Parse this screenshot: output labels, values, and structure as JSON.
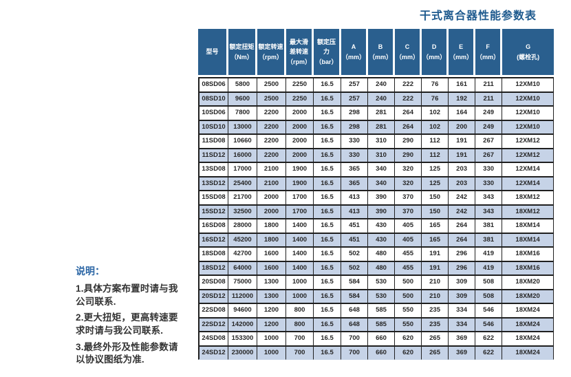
{
  "page": {
    "title": "干式离合器性能参数表"
  },
  "notes": {
    "heading": "说明：",
    "items": [
      "1.具体方案布置时请与我公司联系.",
      "2.更大扭矩，更高转速要求时请与我公司联系.",
      "3.最终外形及性能参数请以协议图纸为准."
    ]
  },
  "table": {
    "headers": [
      "型号",
      "额定扭矩\n（Nm）",
      "额定转速\n（rpm）",
      "最大滑\n差转速\n（rpm）",
      "额定压力\n（bar）",
      "A\n（mm）",
      "B\n（mm）",
      "C\n（mm）",
      "D\n（mm）",
      "E\n（mm）",
      "F\n（mm）",
      "G\n(螺栓孔)"
    ],
    "rows": [
      [
        "08SD06",
        "5800",
        "2500",
        "2250",
        "16.5",
        "257",
        "240",
        "222",
        "76",
        "161",
        "211",
        "12XM10"
      ],
      [
        "08SD10",
        "9600",
        "2500",
        "2250",
        "16.5",
        "257",
        "240",
        "222",
        "76",
        "192",
        "211",
        "12XM10"
      ],
      [
        "10SD06",
        "7800",
        "2200",
        "2000",
        "16.5",
        "298",
        "281",
        "264",
        "102",
        "164",
        "249",
        "12XM10"
      ],
      [
        "10SD10",
        "13000",
        "2200",
        "2000",
        "16.5",
        "298",
        "281",
        "264",
        "102",
        "200",
        "249",
        "12XM10"
      ],
      [
        "11SD08",
        "10660",
        "2200",
        "2000",
        "16.5",
        "330",
        "310",
        "290",
        "112",
        "191",
        "267",
        "12XM12"
      ],
      [
        "11SD12",
        "16000",
        "2200",
        "2000",
        "16.5",
        "330",
        "310",
        "290",
        "112",
        "191",
        "267",
        "12XM12"
      ],
      [
        "13SD08",
        "17000",
        "2100",
        "1900",
        "16.5",
        "365",
        "340",
        "320",
        "125",
        "203",
        "330",
        "12XM14"
      ],
      [
        "13SD12",
        "25400",
        "2100",
        "1900",
        "16.5",
        "365",
        "340",
        "320",
        "125",
        "203",
        "330",
        "12XM14"
      ],
      [
        "15SD08",
        "21700",
        "2000",
        "1700",
        "16.5",
        "413",
        "390",
        "370",
        "150",
        "242",
        "343",
        "18XM12"
      ],
      [
        "15SD12",
        "32500",
        "2000",
        "1700",
        "16.5",
        "413",
        "390",
        "370",
        "150",
        "242",
        "343",
        "18XM12"
      ],
      [
        "16SD08",
        "28000",
        "1800",
        "1400",
        "16.5",
        "451",
        "430",
        "405",
        "165",
        "264",
        "381",
        "18XM14"
      ],
      [
        "16SD12",
        "45200",
        "1800",
        "1400",
        "16.5",
        "451",
        "430",
        "405",
        "165",
        "264",
        "381",
        "18XM14"
      ],
      [
        "18SD08",
        "42700",
        "1600",
        "1400",
        "16.5",
        "502",
        "480",
        "455",
        "191",
        "296",
        "419",
        "18XM16"
      ],
      [
        "18SD12",
        "64000",
        "1600",
        "1400",
        "16.5",
        "502",
        "480",
        "455",
        "191",
        "296",
        "419",
        "18XM16"
      ],
      [
        "20SD08",
        "75000",
        "1300",
        "1000",
        "16.5",
        "584",
        "530",
        "500",
        "210",
        "309",
        "508",
        "18XM20"
      ],
      [
        "20SD12",
        "112000",
        "1300",
        "1000",
        "16.5",
        "584",
        "530",
        "500",
        "210",
        "309",
        "508",
        "18XM20"
      ],
      [
        "22SD08",
        "94600",
        "1200",
        "800",
        "16.5",
        "648",
        "585",
        "550",
        "235",
        "334",
        "546",
        "18XM24"
      ],
      [
        "22SD12",
        "142000",
        "1200",
        "800",
        "16.5",
        "648",
        "585",
        "550",
        "235",
        "334",
        "546",
        "18XM24"
      ],
      [
        "24SD08",
        "153300",
        "1000",
        "700",
        "16.5",
        "700",
        "660",
        "620",
        "265",
        "369",
        "622",
        "18XM24"
      ],
      [
        "24SD12",
        "230000",
        "1000",
        "700",
        "16.5",
        "700",
        "660",
        "620",
        "265",
        "369",
        "622",
        "18XM24"
      ]
    ]
  },
  "colors": {
    "header_bg": "#2a5f8e",
    "row_alt": "#c6d3e7",
    "border": "#1f1f1f",
    "title": "#1e5a8e",
    "notes_heading": "#2b66a5",
    "cell_text": "#262626",
    "note_text": "#333333"
  }
}
